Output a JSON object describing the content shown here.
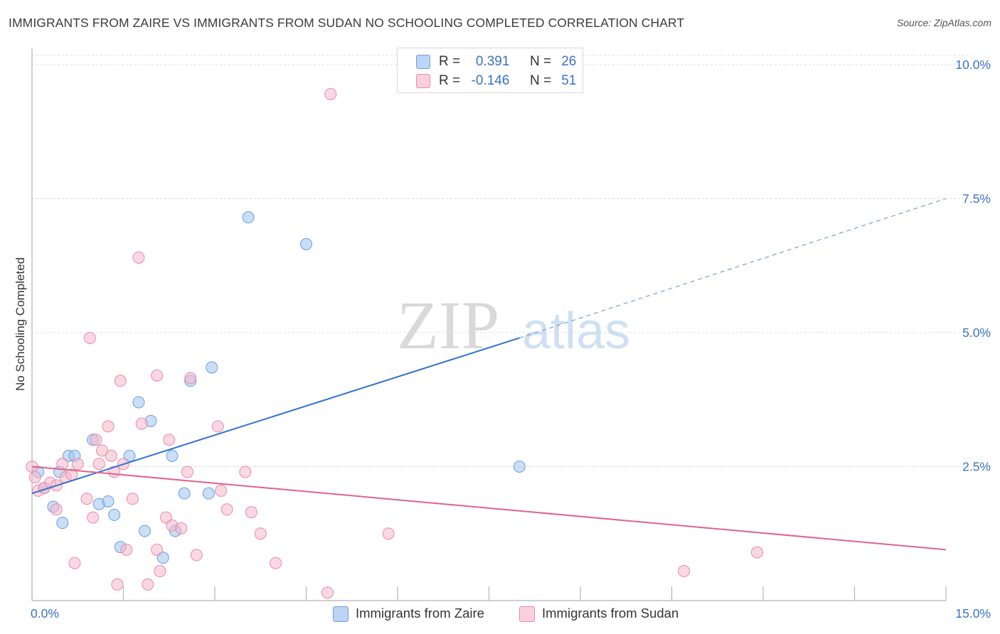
{
  "title": "IMMIGRANTS FROM ZAIRE VS IMMIGRANTS FROM SUDAN NO SCHOOLING COMPLETED CORRELATION CHART",
  "source": "Source: ZipAtlas.com",
  "watermark": {
    "zip": "ZIP",
    "atlas": "atlas"
  },
  "legend": {
    "r_label": "R =",
    "n_label": "N =",
    "series": [
      {
        "r": "0.391",
        "n": "26"
      },
      {
        "r": "-0.146",
        "n": "51"
      }
    ]
  },
  "chart_data": {
    "type": "scatter",
    "title": "IMMIGRANTS FROM ZAIRE VS IMMIGRANTS FROM SUDAN NO SCHOOLING COMPLETED CORRELATION CHART",
    "xlabel": "",
    "ylabel": "No Schooling Completed",
    "xlim": [
      0,
      15
    ],
    "ylim": [
      0,
      10.25
    ],
    "x_tick_labels": [
      "0.0%",
      "15.0%"
    ],
    "y_tick_values": [
      2.5,
      5.0,
      7.5,
      10.0
    ],
    "y_tick_labels": [
      "2.5%",
      "5.0%",
      "7.5%",
      "10.0%"
    ],
    "grid": true,
    "series": [
      {
        "name": "Immigrants from Zaire",
        "color": "#9fc3ef",
        "edge": "#6a9fe0",
        "trend_color": "#2f72d2",
        "trend": {
          "x0": 0,
          "y0": 2.0,
          "x1": 8.0,
          "y1": 4.9,
          "dash_to_x": 15,
          "dash_to_y": 7.5
        },
        "points": [
          [
            0.1,
            2.4
          ],
          [
            0.2,
            2.1
          ],
          [
            0.35,
            1.75
          ],
          [
            0.45,
            2.4
          ],
          [
            0.5,
            1.45
          ],
          [
            0.6,
            2.7
          ],
          [
            0.7,
            2.7
          ],
          [
            1.0,
            3.0
          ],
          [
            1.1,
            1.8
          ],
          [
            1.25,
            1.85
          ],
          [
            1.35,
            1.6
          ],
          [
            1.45,
            1.0
          ],
          [
            1.6,
            2.7
          ],
          [
            1.75,
            3.7
          ],
          [
            1.85,
            1.3
          ],
          [
            1.95,
            3.35
          ],
          [
            2.15,
            0.8
          ],
          [
            2.3,
            2.7
          ],
          [
            2.35,
            1.3
          ],
          [
            2.5,
            2.0
          ],
          [
            2.6,
            4.1
          ],
          [
            2.9,
            2.0
          ],
          [
            2.95,
            4.35
          ],
          [
            3.55,
            7.15
          ],
          [
            4.5,
            6.65
          ],
          [
            8.0,
            2.5
          ]
        ]
      },
      {
        "name": "Immigrants from Sudan",
        "color": "#f5b8cb",
        "edge": "#e98aa8",
        "trend_color": "#e0628d",
        "trend": {
          "x0": 0,
          "y0": 2.5,
          "x1": 15,
          "y1": 0.95
        },
        "points": [
          [
            0.0,
            2.5
          ],
          [
            0.05,
            2.3
          ],
          [
            0.1,
            2.05
          ],
          [
            0.2,
            2.1
          ],
          [
            0.3,
            2.2
          ],
          [
            0.4,
            2.15
          ],
          [
            0.4,
            1.7
          ],
          [
            0.5,
            2.55
          ],
          [
            0.55,
            2.3
          ],
          [
            0.65,
            2.35
          ],
          [
            0.7,
            0.7
          ],
          [
            0.75,
            2.55
          ],
          [
            0.9,
            1.9
          ],
          [
            0.95,
            4.9
          ],
          [
            1.0,
            1.55
          ],
          [
            1.05,
            3.0
          ],
          [
            1.1,
            2.55
          ],
          [
            1.15,
            2.8
          ],
          [
            1.25,
            3.25
          ],
          [
            1.3,
            2.7
          ],
          [
            1.35,
            2.4
          ],
          [
            1.4,
            0.3
          ],
          [
            1.45,
            4.1
          ],
          [
            1.5,
            2.55
          ],
          [
            1.55,
            0.95
          ],
          [
            1.65,
            1.9
          ],
          [
            1.75,
            6.4
          ],
          [
            1.8,
            3.3
          ],
          [
            1.9,
            0.3
          ],
          [
            2.05,
            4.2
          ],
          [
            2.1,
            0.55
          ],
          [
            2.2,
            1.55
          ],
          [
            2.25,
            3.0
          ],
          [
            2.3,
            1.4
          ],
          [
            2.45,
            1.35
          ],
          [
            2.55,
            2.4
          ],
          [
            2.6,
            4.15
          ],
          [
            2.7,
            0.85
          ],
          [
            3.05,
            3.25
          ],
          [
            3.1,
            2.05
          ],
          [
            3.2,
            1.7
          ],
          [
            3.5,
            2.4
          ],
          [
            3.6,
            1.65
          ],
          [
            3.75,
            1.25
          ],
          [
            4.0,
            0.7
          ],
          [
            4.85,
            0.15
          ],
          [
            4.9,
            9.45
          ],
          [
            5.85,
            1.25
          ],
          [
            10.7,
            0.55
          ],
          [
            11.9,
            0.9
          ],
          [
            2.05,
            0.95
          ]
        ]
      }
    ]
  }
}
